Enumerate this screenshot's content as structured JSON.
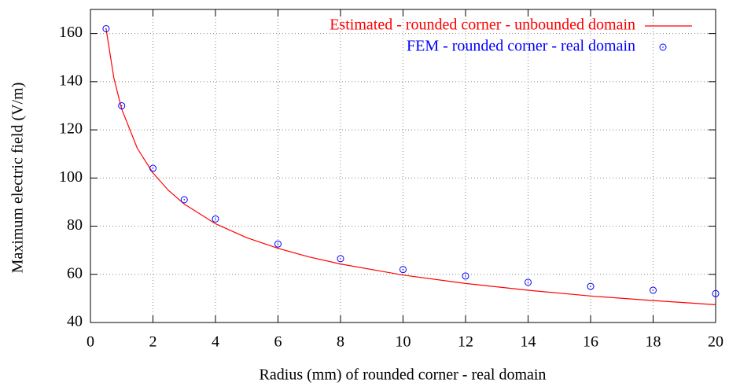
{
  "chart_data": {
    "type": "line",
    "xlabel": "Radius (mm) of rounded corner - real domain",
    "ylabel": "Maximum electric field (V/m)",
    "xlim": [
      0,
      20
    ],
    "ylim": [
      40,
      170
    ],
    "xticks": [
      0,
      2,
      4,
      6,
      8,
      10,
      12,
      14,
      16,
      18,
      20
    ],
    "yticks": [
      40,
      60,
      80,
      100,
      120,
      140,
      160
    ],
    "grid": true,
    "legend": "top-right",
    "series": [
      {
        "name": "Estimated - rounded corner - unbounded domain",
        "color": "#ff0000",
        "style": "line",
        "x": [
          0.5,
          0.75,
          1,
          1.5,
          2,
          2.5,
          3,
          4,
          5,
          6,
          7,
          8,
          10,
          12,
          14,
          16,
          18,
          20
        ],
        "values": [
          162.0,
          141.5,
          128.6,
          112.3,
          102.1,
          94.8,
          89.2,
          81.0,
          75.2,
          70.8,
          67.2,
          64.3,
          59.7,
          56.2,
          53.4,
          51.0,
          49.1,
          47.4
        ]
      },
      {
        "name": "FEM - rounded corner - real domain",
        "color": "#0000ff",
        "style": "points",
        "x": [
          0.5,
          1,
          2,
          3,
          4,
          6,
          8,
          10,
          12,
          14,
          16,
          18,
          20
        ],
        "values": [
          162,
          130,
          104,
          91,
          83,
          72.6,
          66.5,
          62,
          59.3,
          56.7,
          55,
          53.4,
          52
        ]
      }
    ]
  }
}
